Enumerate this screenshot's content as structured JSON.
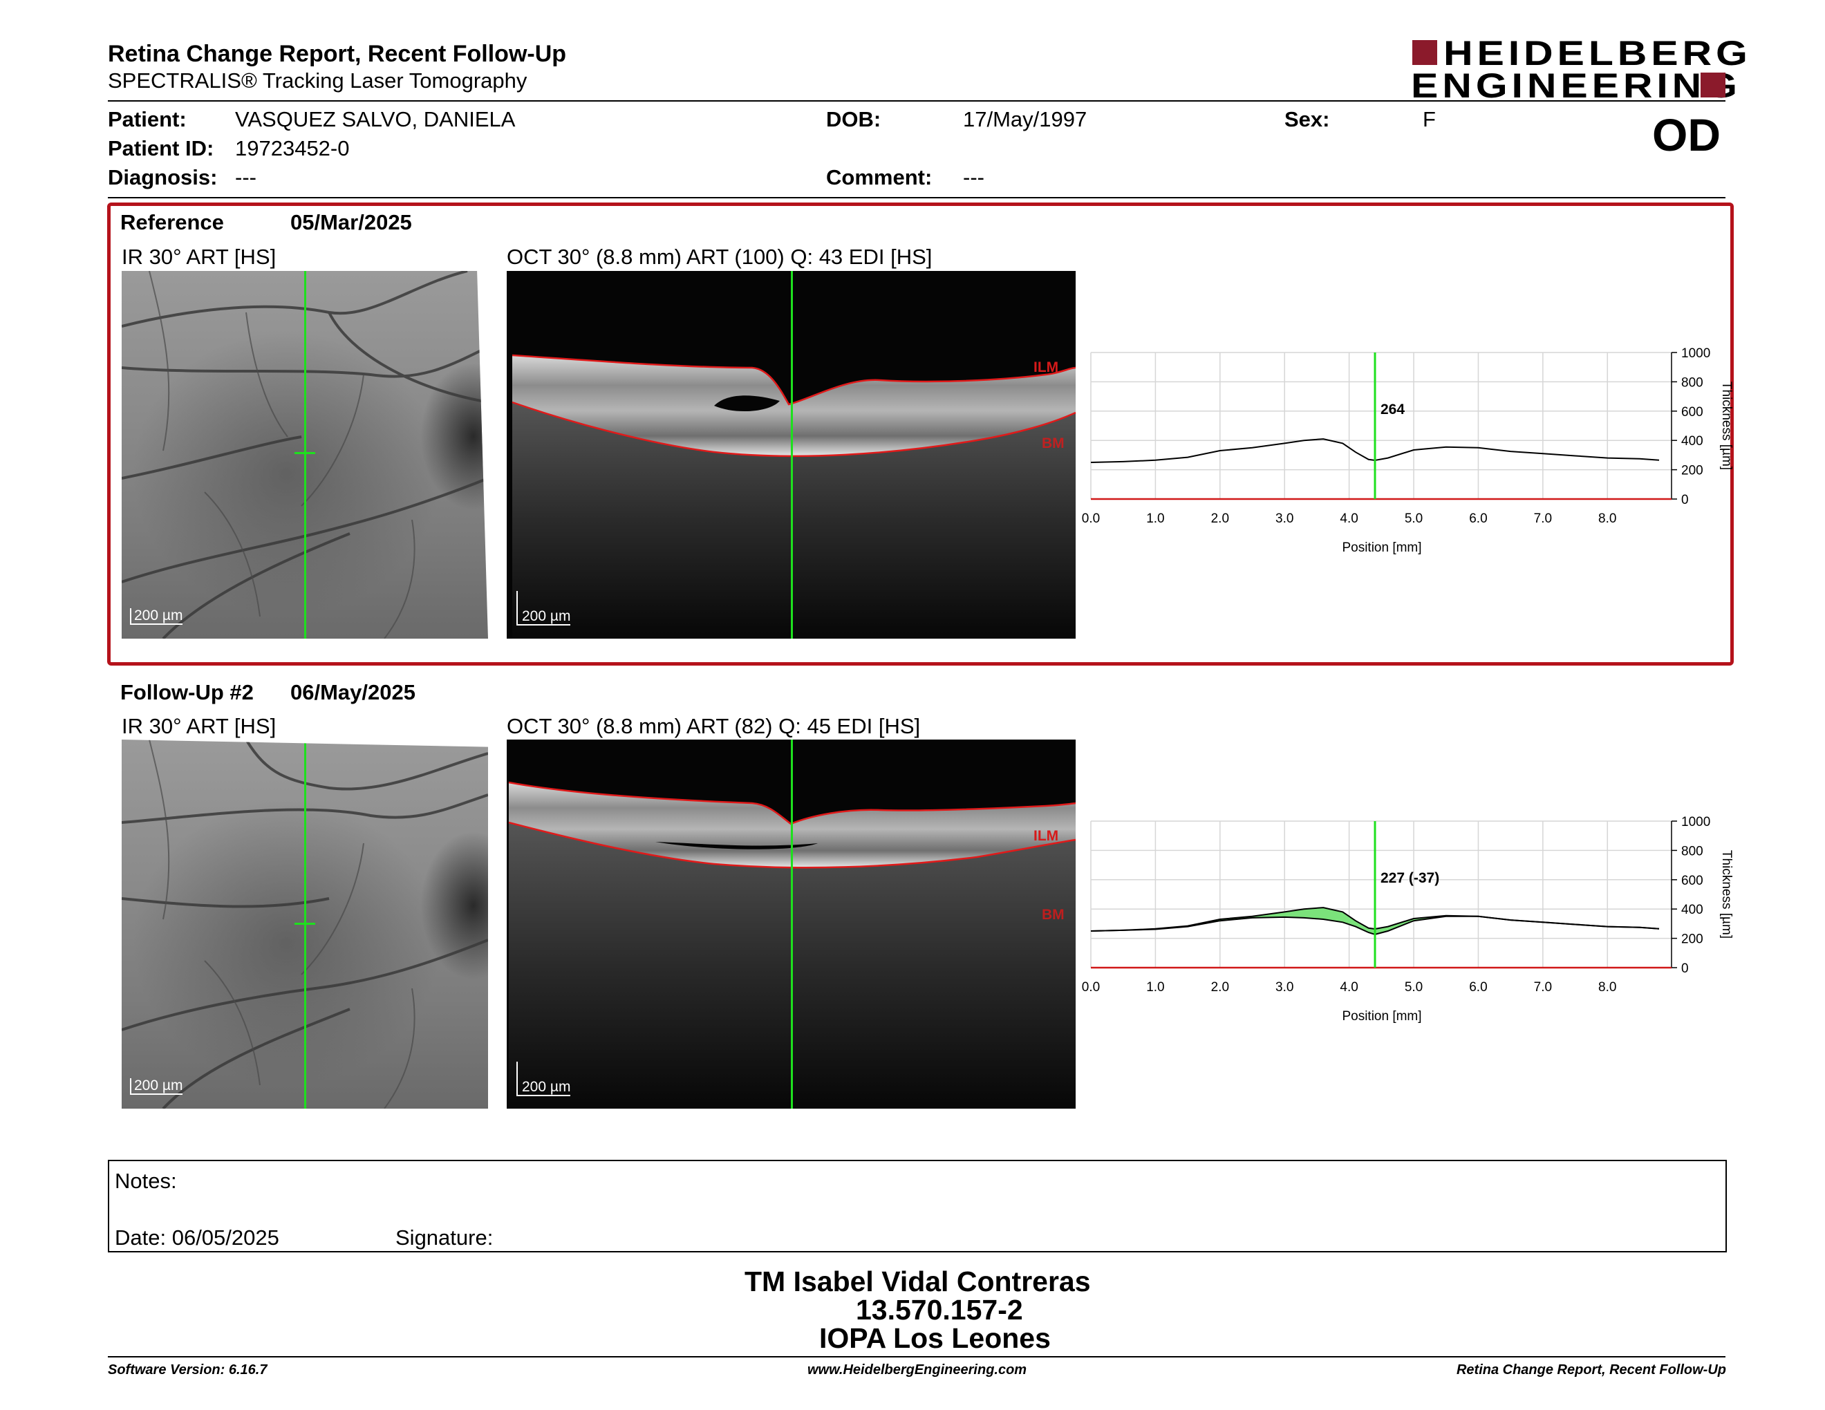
{
  "header": {
    "title": "Retina Change Report, Recent Follow-Up",
    "subtitle": "SPECTRALIS® Tracking Laser Tomography",
    "logo_line1": "HEIDELBERG",
    "logo_line2": "ENGINEERING",
    "eye": "OD",
    "brand_color": "#8b1a2b"
  },
  "patient": {
    "name_label": "Patient:",
    "name": "VASQUEZ SALVO, DANIELA",
    "id_label": "Patient ID:",
    "id": "19723452-0",
    "diagnosis_label": "Diagnosis:",
    "diagnosis": "---",
    "dob_label": "DOB:",
    "dob": "17/May/1997",
    "comment_label": "Comment:",
    "comment": "---",
    "sex_label": "Sex:",
    "sex": "F"
  },
  "exams": [
    {
      "label": "Reference",
      "date": "05/Mar/2025",
      "ir_title": "IR 30° ART [HS]",
      "oct_title": "OCT 30° (8.8 mm) ART (100) Q: 43 EDI [HS]",
      "scale_label": "200 µm",
      "ilm_label": "ILM",
      "bm_label": "BM",
      "marker_value": "264",
      "chart": {
        "x_ticks": [
          "0.0",
          "1.0",
          "2.0",
          "3.0",
          "4.0",
          "5.0",
          "6.0",
          "7.0",
          "8.0"
        ],
        "y_ticks": [
          "1000",
          "800",
          "600",
          "400",
          "200",
          "0"
        ],
        "xlabel": "Position [mm]",
        "ylabel": "Thickness [µm]"
      }
    },
    {
      "label": "Follow-Up #2",
      "date": "06/May/2025",
      "ir_title": "IR 30° ART [HS]",
      "oct_title": "OCT 30° (8.8 mm) ART (82) Q: 45 EDI [HS]",
      "scale_label": "200 µm",
      "ilm_label": "ILM",
      "bm_label": "BM",
      "marker_value": "227 (-37)",
      "chart": {
        "x_ticks": [
          "0.0",
          "1.0",
          "2.0",
          "3.0",
          "4.0",
          "5.0",
          "6.0",
          "7.0",
          "8.0"
        ],
        "y_ticks": [
          "1000",
          "800",
          "600",
          "400",
          "200",
          "0"
        ],
        "xlabel": "Position [mm]",
        "ylabel": "Thickness [µm]"
      }
    }
  ],
  "chart_data": [
    {
      "type": "line",
      "xlabel": "Position [mm]",
      "ylabel": "Thickness [µm]",
      "xlim": [
        0,
        8.8
      ],
      "ylim": [
        0,
        1000
      ],
      "marker_x": 4.4,
      "marker_value": 264,
      "series": [
        {
          "x": [
            0,
            0.5,
            1,
            1.5,
            2,
            2.5,
            3,
            3.3,
            3.6,
            3.9,
            4.1,
            4.3,
            4.4,
            4.6,
            5,
            5.5,
            6,
            6.5,
            7,
            7.5,
            8,
            8.5,
            8.8
          ],
          "y": [
            250,
            255,
            265,
            285,
            330,
            350,
            380,
            400,
            410,
            380,
            320,
            270,
            264,
            280,
            335,
            355,
            350,
            325,
            310,
            295,
            280,
            275,
            265
          ]
        }
      ]
    },
    {
      "type": "area",
      "xlabel": "Position [mm]",
      "ylabel": "Thickness [µm]",
      "xlim": [
        0,
        8.8
      ],
      "ylim": [
        0,
        1000
      ],
      "marker_x": 4.4,
      "marker_value": 227,
      "marker_change": -37,
      "series": [
        {
          "x": [
            0,
            0.5,
            1,
            1.5,
            2,
            2.5,
            3,
            3.3,
            3.6,
            3.9,
            4.1,
            4.3,
            4.4,
            4.6,
            5,
            5.5,
            6,
            6.5,
            7,
            7.5,
            8,
            8.5,
            8.8
          ],
          "y": [
            250,
            255,
            265,
            285,
            330,
            350,
            380,
            400,
            410,
            380,
            320,
            270,
            264,
            280,
            335,
            355,
            350,
            325,
            310,
            295,
            280,
            275,
            265
          ]
        },
        {
          "x": [
            0,
            0.5,
            1,
            1.5,
            2,
            2.5,
            3,
            3.3,
            3.6,
            3.9,
            4.1,
            4.3,
            4.4,
            4.6,
            5,
            5.5,
            6,
            6.5,
            7,
            7.5,
            8,
            8.5,
            8.8
          ],
          "y": [
            250,
            255,
            262,
            280,
            320,
            340,
            345,
            340,
            330,
            310,
            280,
            240,
            227,
            250,
            320,
            350,
            350,
            325,
            310,
            295,
            280,
            275,
            265
          ]
        }
      ],
      "fill_color": "#7be27b"
    }
  ],
  "notes": {
    "notes_label": "Notes:",
    "date_label": "Date: 06/05/2025",
    "signature_label": "Signature:"
  },
  "signature": {
    "name": "TM Isabel Vidal Contreras",
    "rut": "13.570.157-2",
    "org": "IOPA Los Leones"
  },
  "footer": {
    "software": "Software Version: 6.16.7",
    "website": "www.HeidelbergEngineering.com",
    "report": "Retina Change Report, Recent Follow-Up"
  }
}
